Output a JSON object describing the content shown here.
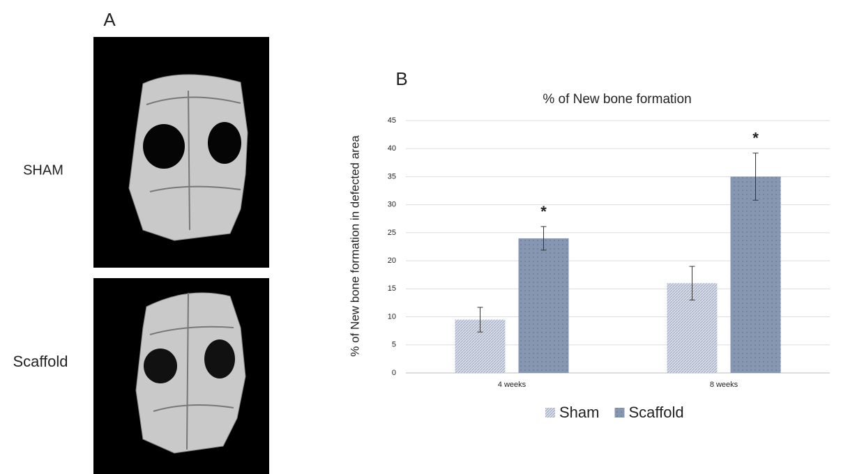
{
  "figure": {
    "panel_a": {
      "label": "A",
      "rows": [
        "SHAM",
        "Scaffold"
      ]
    }
  },
  "chart_data": {
    "type": "bar",
    "panel_label": "B",
    "title": "% of New bone formation",
    "y_label": "% of New bone formation in defected area",
    "categories": [
      "4 weeks",
      "8 weeks"
    ],
    "series": [
      {
        "name": "Sham",
        "color": "#b9c3da",
        "values": [
          9.5,
          16
        ],
        "errors": [
          2.2,
          3
        ]
      },
      {
        "name": "Scaffold",
        "color": "#8796b1",
        "values": [
          24,
          35
        ],
        "errors": [
          2.1,
          4.2
        ]
      }
    ],
    "annotations": [
      "*",
      "*"
    ],
    "ylim": [
      0,
      45
    ],
    "yticks": [
      0,
      5,
      10,
      15,
      20,
      25,
      30,
      35,
      40,
      45
    ],
    "grid": true,
    "legend": "bottom"
  }
}
